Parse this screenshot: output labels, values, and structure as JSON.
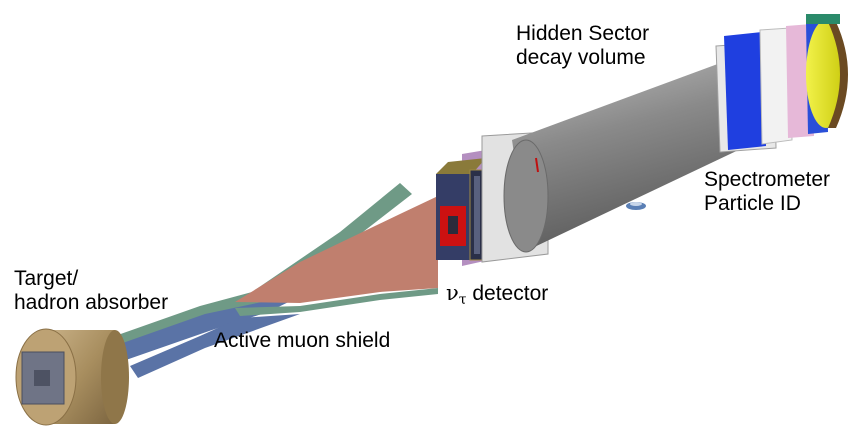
{
  "diagram": {
    "labels": {
      "hidden_sector_line1": "Hidden Sector",
      "hidden_sector_line2": "decay volume",
      "spectrometer_line1": "Spectrometer",
      "spectrometer_line2": "Particle ID",
      "target_line1": "Target/",
      "target_line2": "hadron absorber",
      "muon_shield": "Active muon shield",
      "nu_symbol": "ν",
      "tau_subscript": "τ",
      "nu_detector_suffix": " detector"
    },
    "colors": {
      "target_body": "#a88e5f",
      "shield_blue": "#5a73a6",
      "shield_green": "#6f9a86",
      "shield_red": "#c07f6e",
      "vessel_gray": "#8e8e8e",
      "detector_navy": "#343d66",
      "magnet_red": "#cc1111",
      "spectro_blue": "#1f3fe0",
      "spectro_yellow": "#dede16",
      "spectro_brown": "#6b4a22"
    }
  }
}
